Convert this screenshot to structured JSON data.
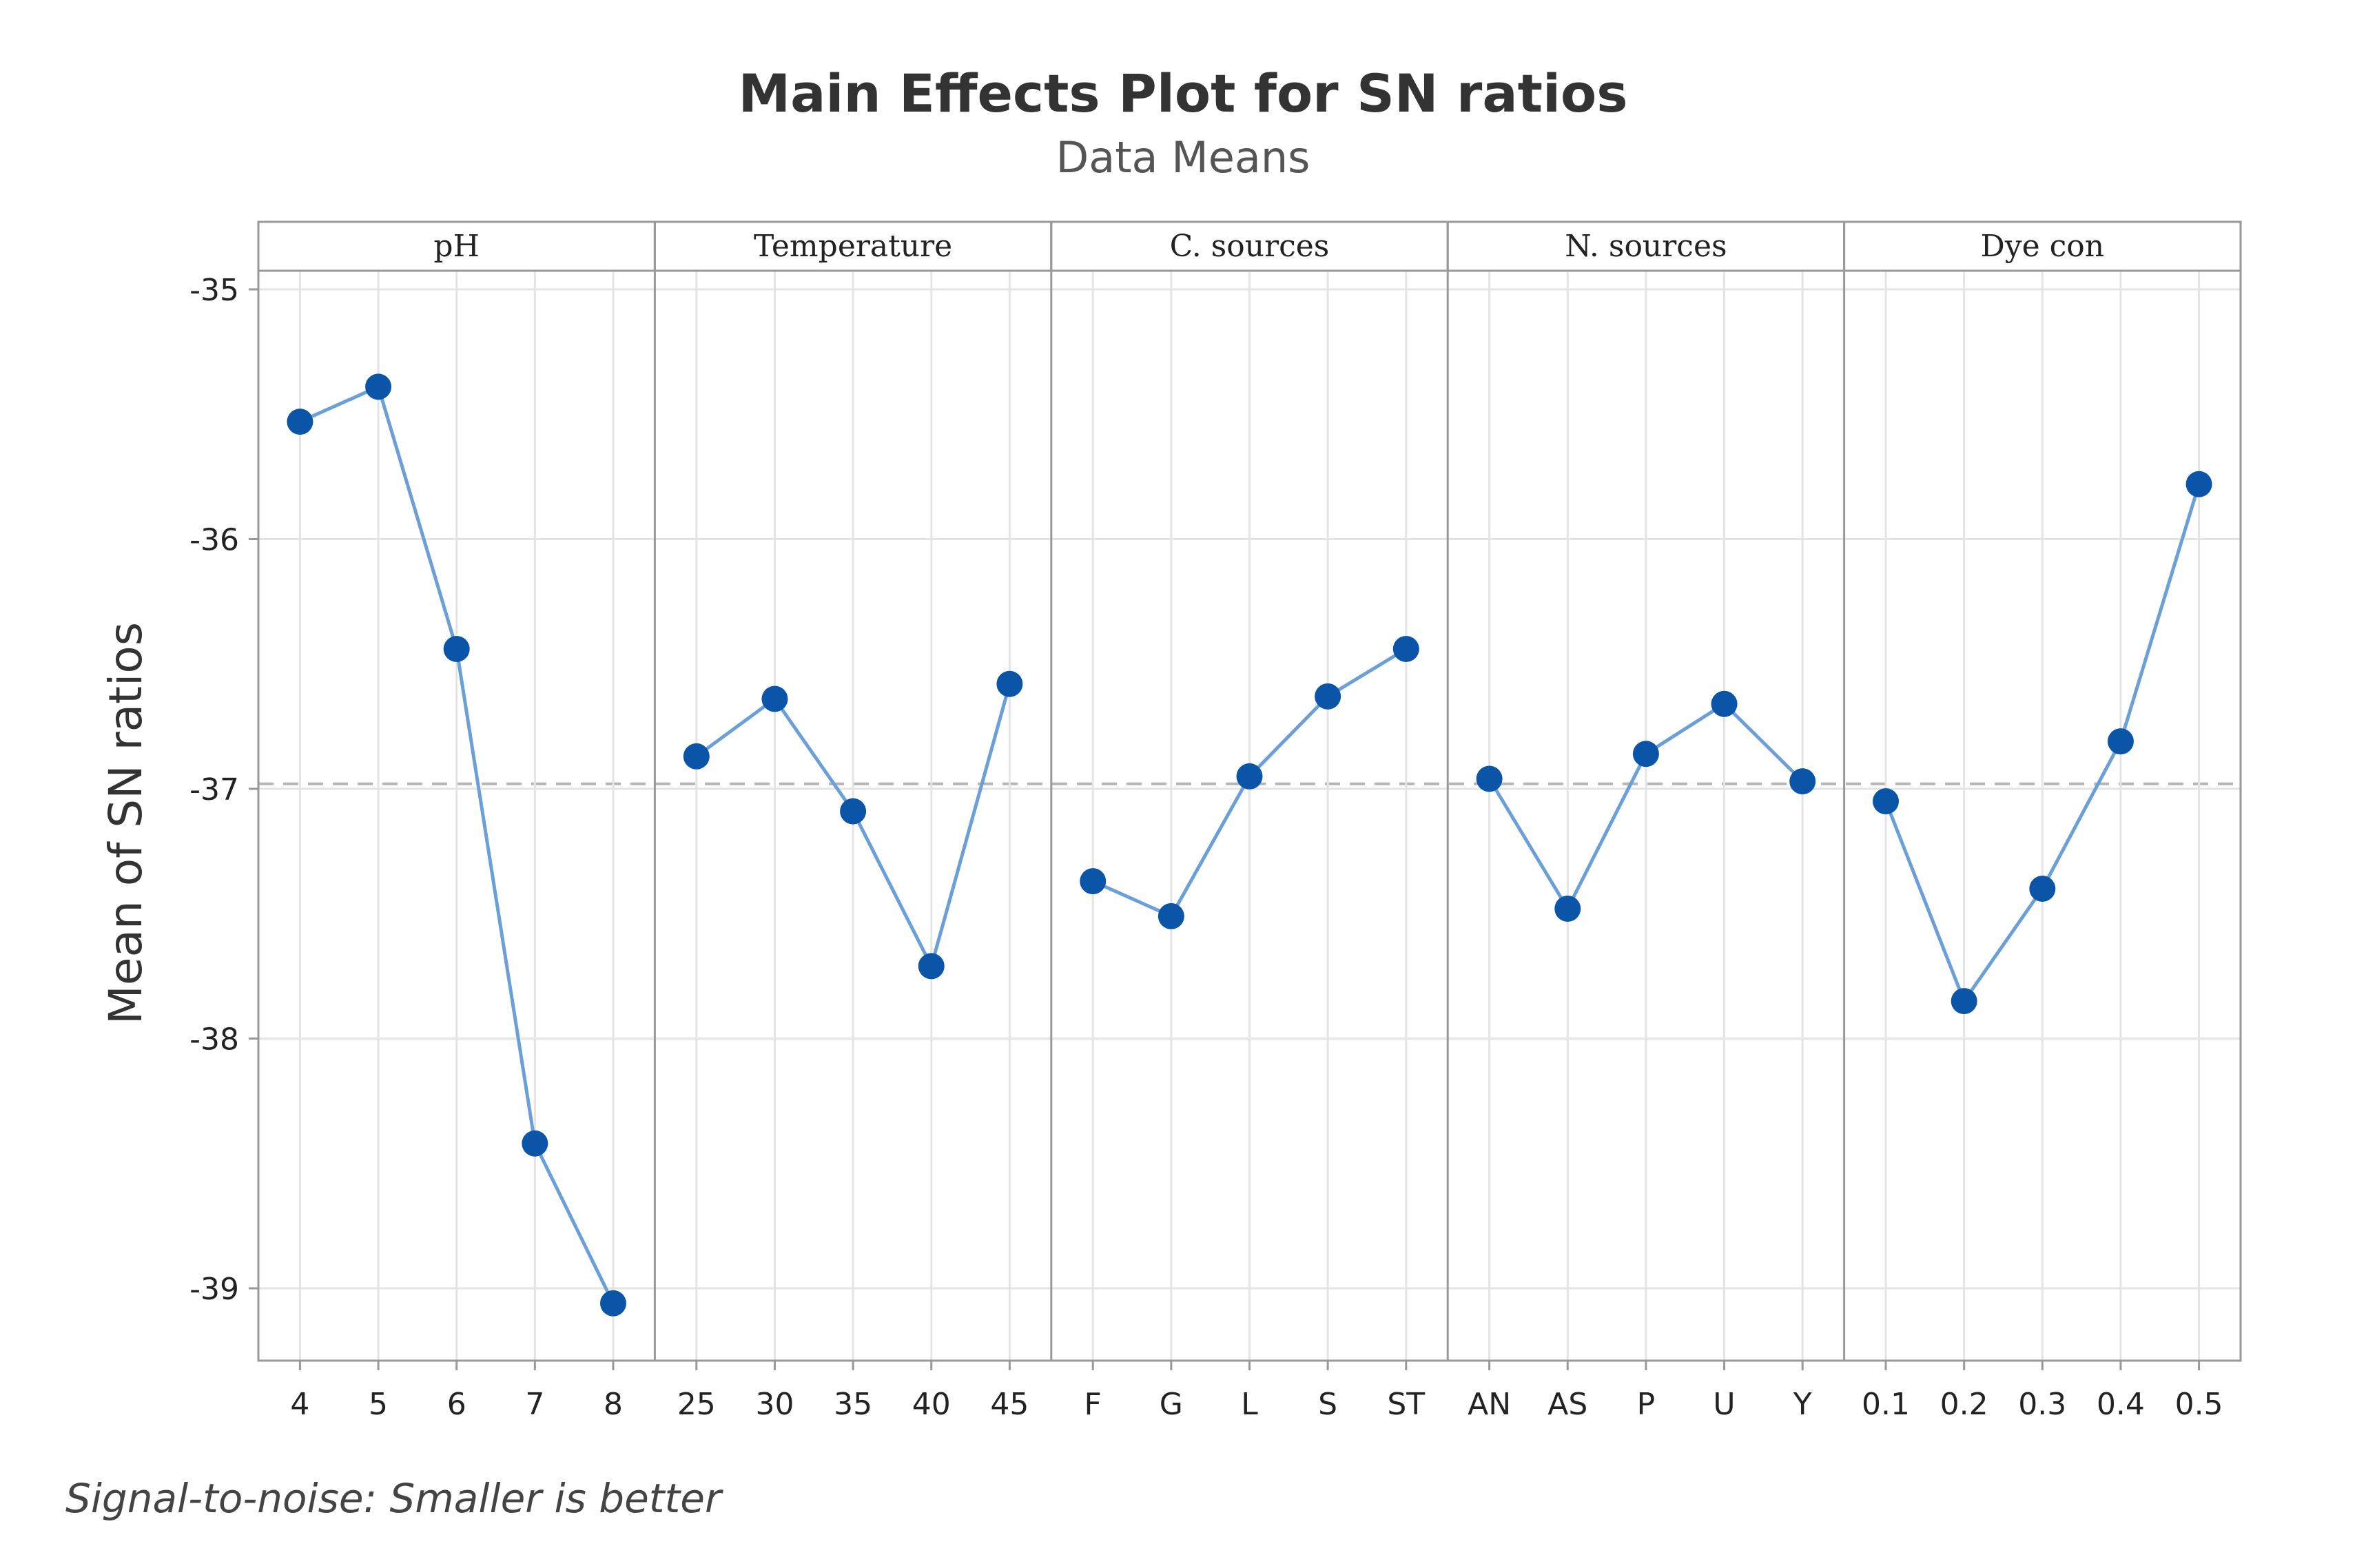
{
  "chart_data": {
    "type": "line",
    "title": "Main Effects Plot for SN ratios",
    "subtitle": "Data Means",
    "ylabel": "Mean of SN ratios",
    "ylim": [
      -39.3,
      -34.9
    ],
    "yticks": [
      -35,
      -36,
      -37,
      -38,
      -39
    ],
    "yticklabels": [
      "-35",
      "-36",
      "-37",
      "-38",
      "-39"
    ],
    "reference_line": -36.98,
    "grid": true,
    "footnote": "Signal-to-noise: Smaller is better",
    "colors": {
      "line": "#6a9fd8",
      "marker": "#0b55a8",
      "reference": "#b5b5b5",
      "grid": "#e4e4e4",
      "frame": "#999999"
    },
    "panels": [
      {
        "factor": "pH",
        "levels": [
          "4",
          "5",
          "6",
          "7",
          "8"
        ],
        "values": [
          -35.53,
          -35.39,
          -36.44,
          -38.42,
          -39.06
        ]
      },
      {
        "factor": "Temperature",
        "levels": [
          "25",
          "30",
          "35",
          "40",
          "45"
        ],
        "values": [
          -36.87,
          -36.64,
          -37.09,
          -37.71,
          -36.58
        ]
      },
      {
        "factor": "C. sources",
        "levels": [
          "F",
          "G",
          "L",
          "S",
          "ST"
        ],
        "values": [
          -37.37,
          -37.51,
          -36.95,
          -36.63,
          -36.44
        ]
      },
      {
        "factor": "N. sources",
        "levels": [
          "AN",
          "AS",
          "P",
          "U",
          "Y"
        ],
        "values": [
          -36.96,
          -37.48,
          -36.86,
          -36.66,
          -36.97
        ]
      },
      {
        "factor": "Dye con",
        "levels": [
          "0.1",
          "0.2",
          "0.3",
          "0.4",
          "0.5"
        ],
        "values": [
          -37.05,
          -37.85,
          -37.4,
          -36.81,
          -35.78
        ]
      }
    ]
  }
}
